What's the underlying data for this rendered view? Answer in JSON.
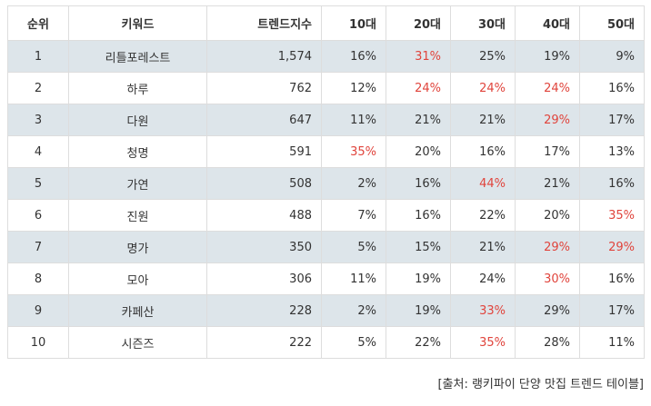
{
  "table": {
    "headers": [
      "순위",
      "키워드",
      "트렌드지수",
      "10대",
      "20대",
      "30대",
      "40대",
      "50대"
    ],
    "rows": [
      {
        "rank": "1",
        "keyword": "리틀포레스트",
        "index": "1,574",
        "ages": [
          "16%",
          "31%",
          "25%",
          "19%",
          "9%"
        ],
        "highlight": [
          false,
          true,
          false,
          false,
          false
        ]
      },
      {
        "rank": "2",
        "keyword": "하루",
        "index": "762",
        "ages": [
          "12%",
          "24%",
          "24%",
          "24%",
          "16%"
        ],
        "highlight": [
          false,
          true,
          true,
          true,
          false
        ]
      },
      {
        "rank": "3",
        "keyword": "다원",
        "index": "647",
        "ages": [
          "11%",
          "21%",
          "21%",
          "29%",
          "17%"
        ],
        "highlight": [
          false,
          false,
          false,
          true,
          false
        ]
      },
      {
        "rank": "4",
        "keyword": "청명",
        "index": "591",
        "ages": [
          "35%",
          "20%",
          "16%",
          "17%",
          "13%"
        ],
        "highlight": [
          true,
          false,
          false,
          false,
          false
        ]
      },
      {
        "rank": "5",
        "keyword": "가연",
        "index": "508",
        "ages": [
          "2%",
          "16%",
          "44%",
          "21%",
          "16%"
        ],
        "highlight": [
          false,
          false,
          true,
          false,
          false
        ]
      },
      {
        "rank": "6",
        "keyword": "진원",
        "index": "488",
        "ages": [
          "7%",
          "16%",
          "22%",
          "20%",
          "35%"
        ],
        "highlight": [
          false,
          false,
          false,
          false,
          true
        ]
      },
      {
        "rank": "7",
        "keyword": "명가",
        "index": "350",
        "ages": [
          "5%",
          "15%",
          "21%",
          "29%",
          "29%"
        ],
        "highlight": [
          false,
          false,
          false,
          true,
          true
        ]
      },
      {
        "rank": "8",
        "keyword": "모아",
        "index": "306",
        "ages": [
          "11%",
          "19%",
          "24%",
          "30%",
          "16%"
        ],
        "highlight": [
          false,
          false,
          false,
          true,
          false
        ]
      },
      {
        "rank": "9",
        "keyword": "카페산",
        "index": "228",
        "ages": [
          "2%",
          "19%",
          "33%",
          "29%",
          "17%"
        ],
        "highlight": [
          false,
          false,
          true,
          false,
          false
        ]
      },
      {
        "rank": "10",
        "keyword": "시즌즈",
        "index": "222",
        "ages": [
          "5%",
          "22%",
          "35%",
          "28%",
          "11%"
        ],
        "highlight": [
          false,
          false,
          true,
          false,
          false
        ]
      }
    ]
  },
  "source": "[출처: 랭키파이 단양 맛집 트렌드 테이블]",
  "colors": {
    "highlight": "#e0443c",
    "stripe": "#dde5ea",
    "border": "#dddddd"
  }
}
